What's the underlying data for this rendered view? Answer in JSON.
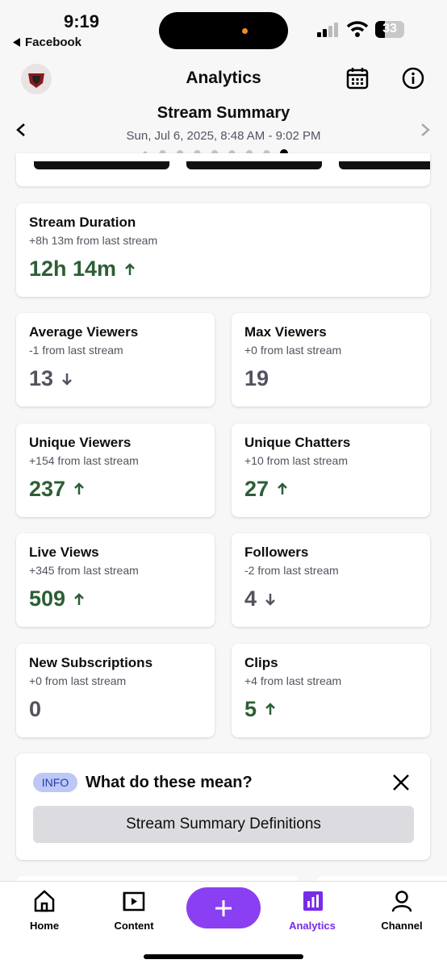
{
  "status_bar": {
    "time": "9:19",
    "back_app": "Facebook",
    "battery": "33"
  },
  "header": {
    "title": "Analytics"
  },
  "summary": {
    "title": "Stream Summary",
    "date": "Sun, Jul 6, 2025, 8:48 AM - 9:02 PM",
    "page_count": 9,
    "current_page": 9
  },
  "stats": [
    {
      "label": "Stream Duration",
      "change": "+8h 13m from last stream",
      "value": "12h 14m",
      "trend": "up"
    },
    {
      "label": "Average Viewers",
      "change": "-1 from last stream",
      "value": 13,
      "trend": "down"
    },
    {
      "label": "Max Viewers",
      "change": "+0 from last stream",
      "value": 19,
      "trend": "none"
    },
    {
      "label": "Unique Viewers",
      "change": "+154 from last stream",
      "value": 237,
      "trend": "up"
    },
    {
      "label": "Unique Chatters",
      "change": "+10 from last stream",
      "value": 27,
      "trend": "up"
    },
    {
      "label": "Live Views",
      "change": "+345 from last stream",
      "value": 509,
      "trend": "up"
    },
    {
      "label": "Followers",
      "change": "-2 from last stream",
      "value": 4,
      "trend": "down"
    },
    {
      "label": "New Subscriptions",
      "change": "+0 from last stream",
      "value": 0,
      "trend": "none"
    },
    {
      "label": "Clips",
      "change": "+4 from last stream",
      "value": 5,
      "trend": "up"
    }
  ],
  "info": {
    "badge": "INFO",
    "title": "What do these mean?",
    "button": "Stream Summary Definitions"
  },
  "nav": [
    {
      "label": "Home"
    },
    {
      "label": "Content"
    },
    {
      "label": "Analytics",
      "active": true
    },
    {
      "label": "Channel"
    }
  ]
}
